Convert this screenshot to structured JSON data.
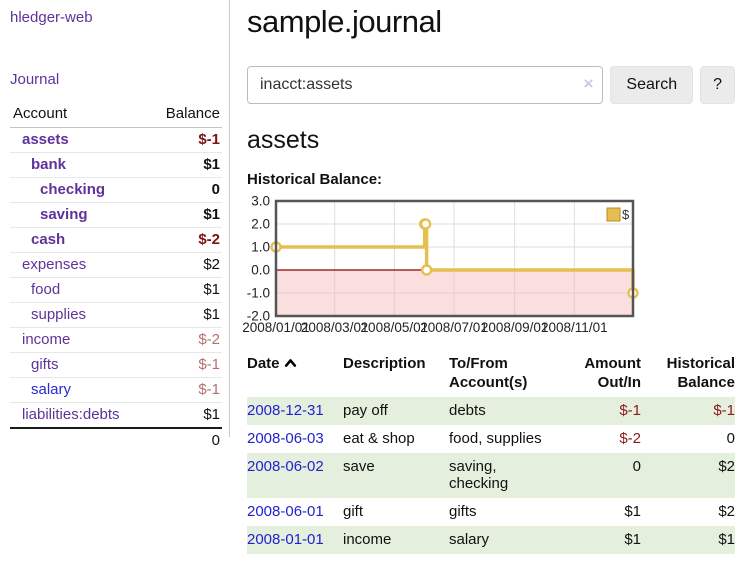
{
  "colors": {
    "accent_purple": "#5f339a",
    "link_blue": "#2222cc",
    "negative_dark": "#7d1414",
    "negative_soft": "#b4716f",
    "row_green": "#e4efde",
    "chart_line": "#e6bf50",
    "chart_legend_border": "#bb8f1d",
    "chart_zero_line": "#8b0000",
    "chart_negative_region": "#f6b9b9",
    "chart_grid": "#dddddd",
    "chart_border": "#555555"
  },
  "sidebar": {
    "app_title": "hledger-web",
    "journal_link": "Journal",
    "accounts_table": {
      "headers": {
        "account": "Account",
        "balance": "Balance"
      },
      "rows": [
        {
          "name": "assets",
          "indent": 1,
          "bold": true,
          "balance": "$-1",
          "balance_style": "neg",
          "link_color": "purple"
        },
        {
          "name": "bank",
          "indent": 2,
          "bold": true,
          "balance": "$1",
          "balance_style": "plain",
          "link_color": "purple"
        },
        {
          "name": "checking",
          "indent": 3,
          "bold": true,
          "balance": "0",
          "balance_style": "plain",
          "link_color": "purple"
        },
        {
          "name": "saving",
          "indent": 3,
          "bold": true,
          "balance": "$1",
          "balance_style": "plain",
          "link_color": "purple"
        },
        {
          "name": "cash",
          "indent": 2,
          "bold": true,
          "balance": "$-2",
          "balance_style": "neg",
          "link_color": "purple"
        },
        {
          "name": "expenses",
          "indent": 1,
          "bold": false,
          "balance": "$2",
          "balance_style": "plain",
          "link_color": "purple"
        },
        {
          "name": "food",
          "indent": 2,
          "bold": false,
          "balance": "$1",
          "balance_style": "plain",
          "link_color": "purple"
        },
        {
          "name": "supplies",
          "indent": 2,
          "bold": false,
          "balance": "$1",
          "balance_style": "plain",
          "link_color": "purple"
        },
        {
          "name": "income",
          "indent": 1,
          "bold": false,
          "balance": "$-2",
          "balance_style": "soft",
          "link_color": "purple"
        },
        {
          "name": "gifts",
          "indent": 2,
          "bold": false,
          "balance": "$-1",
          "balance_style": "soft",
          "link_color": "purple"
        },
        {
          "name": "salary",
          "indent": 2,
          "bold": false,
          "balance": "$-1",
          "balance_style": "soft",
          "link_color": "blue"
        },
        {
          "name": "liabilities:debts",
          "indent": 1,
          "bold": false,
          "balance": "$1",
          "balance_style": "plain",
          "link_color": "purple"
        }
      ],
      "total": "0"
    }
  },
  "main": {
    "title": "sample.journal",
    "search": {
      "value": "inacct:assets",
      "clear_icon": "×",
      "search_button": "Search",
      "help_button": "?"
    },
    "account_heading": "assets",
    "chart_label": "Historical Balance:"
  },
  "chart_data": {
    "type": "line",
    "step": true,
    "title": "Historical Balance",
    "xlabel": "",
    "ylabel": "",
    "series": [
      {
        "name": "$",
        "x": [
          "2008-01-01",
          "2008-06-01",
          "2008-06-02",
          "2008-06-03",
          "2008-12-31"
        ],
        "values": [
          1,
          2,
          2,
          0,
          -1
        ]
      }
    ],
    "x_range": [
      "2008-01-01",
      "2008-12-31"
    ],
    "x_ticks": [
      {
        "date": "2008-01-01",
        "label": "2008/01/01"
      },
      {
        "date": "2008-03-01",
        "label": "2008/03/01"
      },
      {
        "date": "2008-05-01",
        "label": "2008/05/01"
      },
      {
        "date": "2008-07-01",
        "label": "2008/07/01"
      },
      {
        "date": "2008-09-01",
        "label": "2008/09/01"
      },
      {
        "date": "2008-11-01",
        "label": "2008/11/01"
      }
    ],
    "ylim": [
      -2,
      3
    ],
    "y_ticks": [
      {
        "value": 3,
        "label": "3.0"
      },
      {
        "value": 2,
        "label": "2.0"
      },
      {
        "value": 1,
        "label": "1.0"
      },
      {
        "value": 0,
        "label": "0.0"
      },
      {
        "value": -1,
        "label": "-1.0"
      },
      {
        "value": -2,
        "label": "-2.0"
      }
    ],
    "grid": true,
    "negative_region_shaded": true,
    "legend_position": "top-right"
  },
  "transactions_table": {
    "headers": {
      "date": "Date",
      "description": "Description",
      "accounts": "To/From Account(s)",
      "amount": "Amount Out/In",
      "balance": "Historical Balance"
    },
    "sort": {
      "column": "date",
      "direction": "asc",
      "icon": "chevron-up"
    },
    "rows": [
      {
        "date": "2008-12-31",
        "description": "pay off",
        "accounts": "debts",
        "amount": "$-1",
        "amount_neg": true,
        "balance": "$-1",
        "balance_neg": true,
        "shaded": true
      },
      {
        "date": "2008-06-03",
        "description": "eat & shop",
        "accounts": "food, supplies",
        "amount": "$-2",
        "amount_neg": true,
        "balance": "0",
        "balance_neg": false,
        "shaded": false
      },
      {
        "date": "2008-06-02",
        "description": "save",
        "accounts": "saving,\nchecking",
        "amount": "0",
        "amount_neg": false,
        "balance": "$2",
        "balance_neg": false,
        "shaded": true
      },
      {
        "date": "2008-06-01",
        "description": "gift",
        "accounts": "gifts",
        "amount": "$1",
        "amount_neg": false,
        "balance": "$2",
        "balance_neg": false,
        "shaded": false
      },
      {
        "date": "2008-01-01",
        "description": "income",
        "accounts": "salary",
        "amount": "$1",
        "amount_neg": false,
        "balance": "$1",
        "balance_neg": false,
        "shaded": true
      }
    ]
  }
}
